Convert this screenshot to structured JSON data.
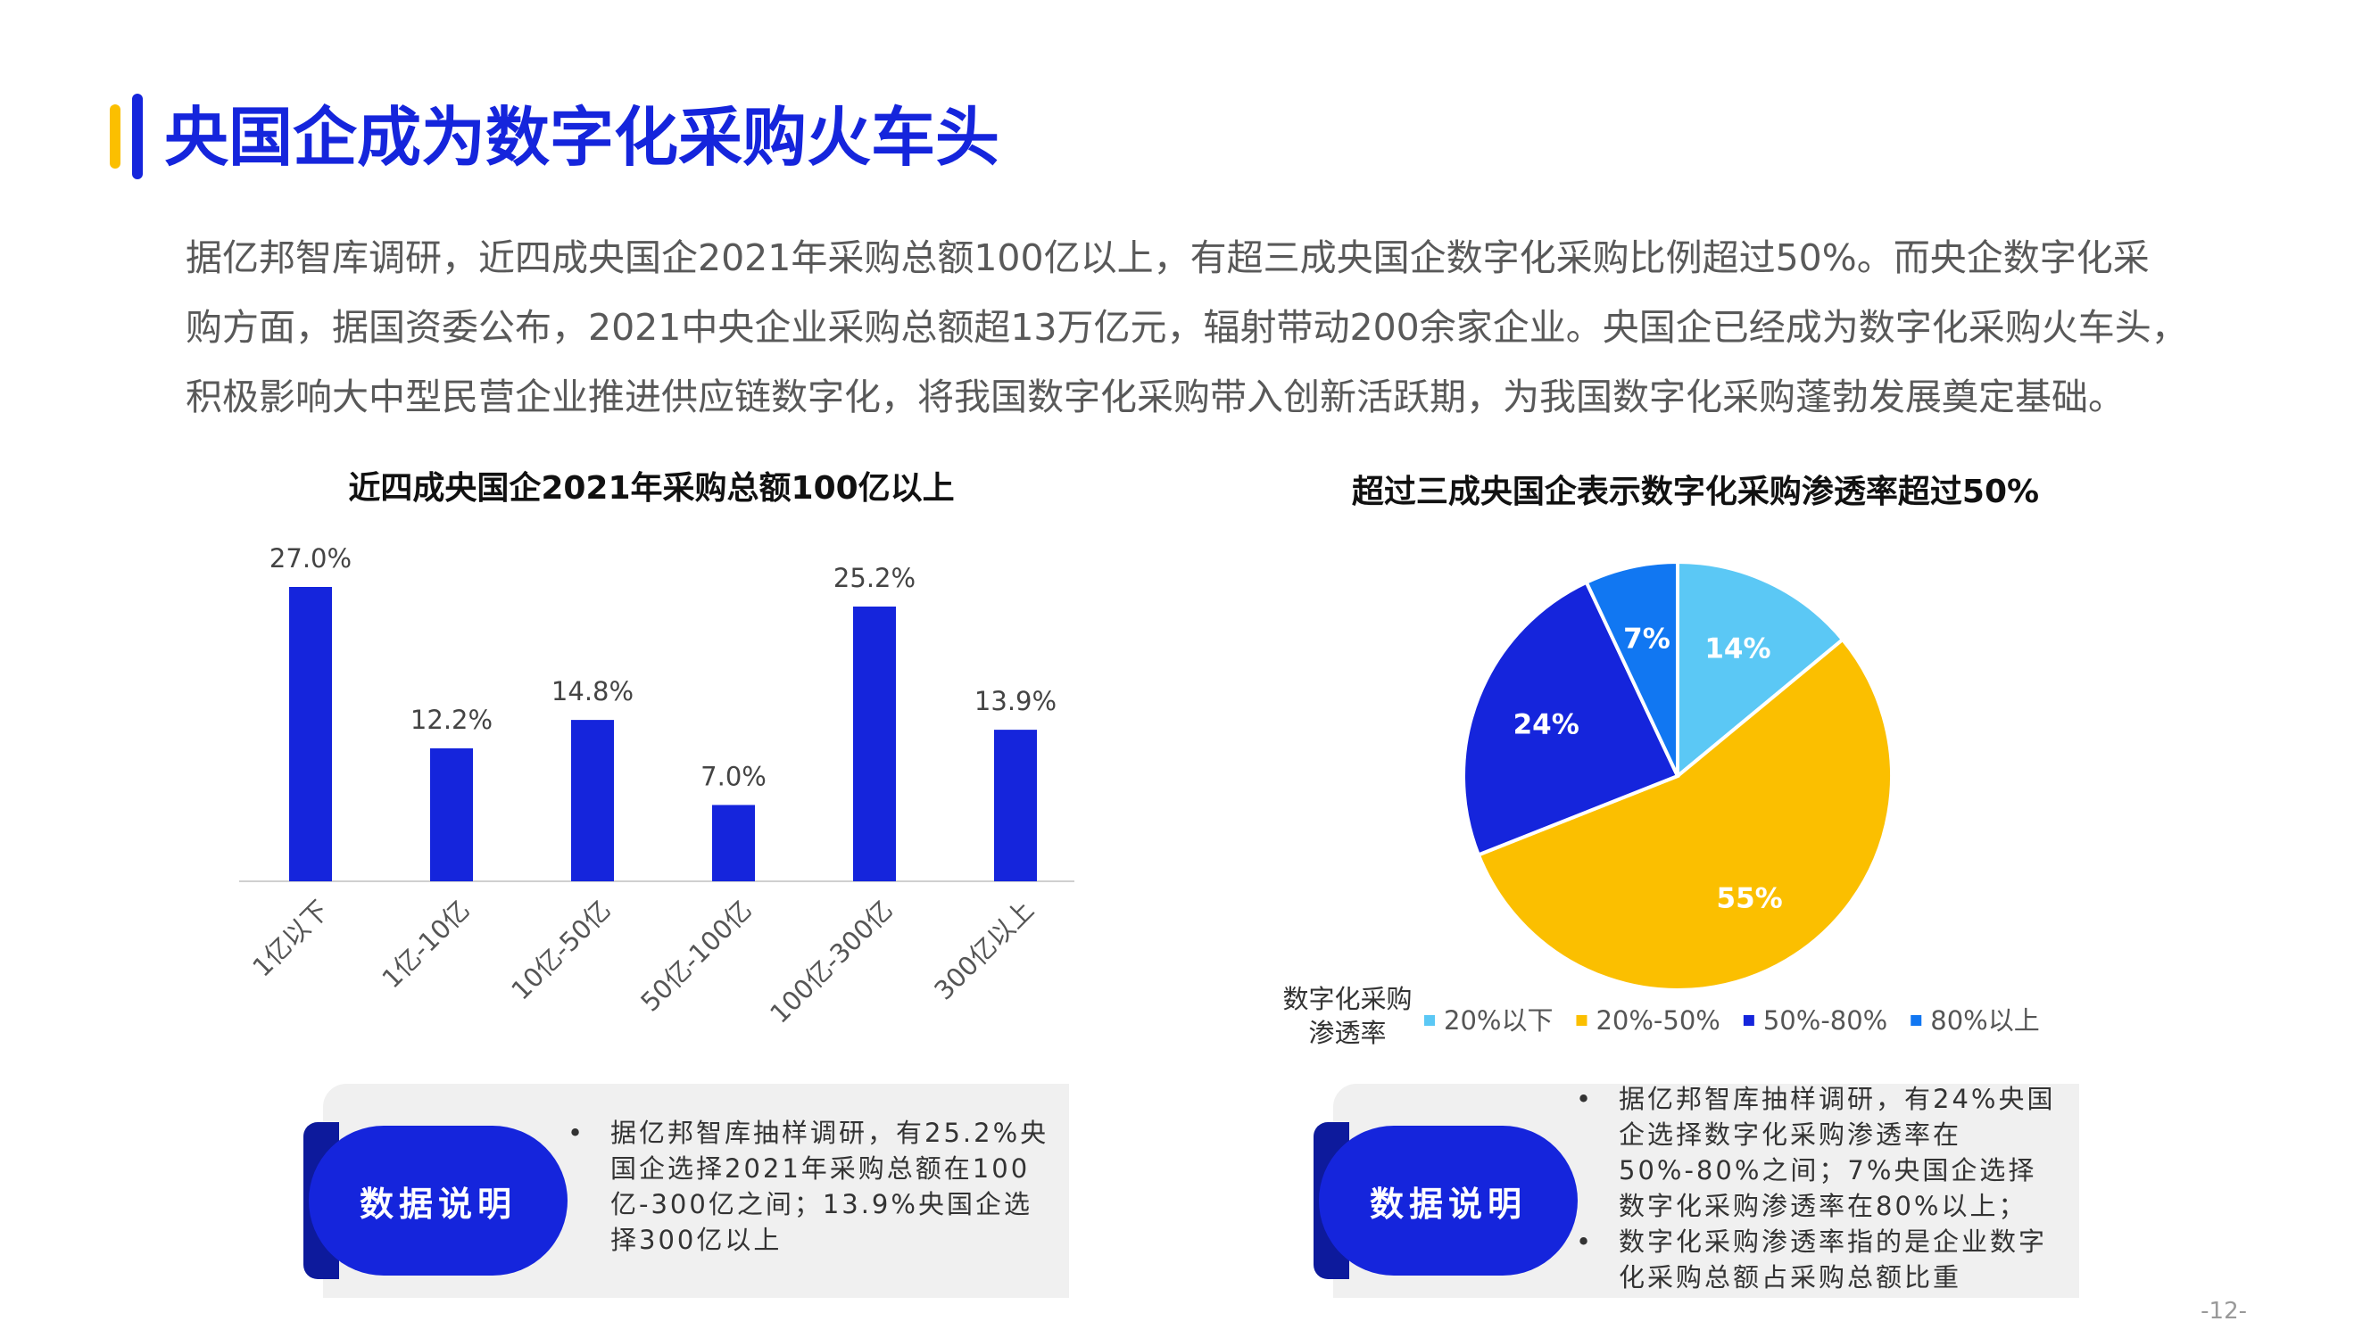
{
  "page": {
    "title": "央国企成为数字化采购火车头",
    "paragraph_lines": [
      "据亿邦智库调研，近四成央国企2021年采购总额100亿以上，有超三成央国企数字化采购比例超过50%。而央企数字化采",
      "购方面，据国资委公布，2021中央企业采购总额超13万亿元，辐射带动200余家企业。央国企已经成为数字化采购火车头，",
      "积极影响大中型民营企业推进供应链数字化，将我国数字化采购带入创新活跃期，为我国数字化采购蓬勃发展奠定基础。"
    ],
    "page_number": "-12-"
  },
  "colors": {
    "brand_blue": "#1525dc",
    "accent_yellow": "#fbbf00",
    "light_blue": "#5bc8f5",
    "mid_blue": "#1177f2",
    "note_bg": "#f0f0f0"
  },
  "chart_data": [
    {
      "type": "bar",
      "title": "近四成央国企2021年采购总额100亿以上",
      "categories": [
        "1亿以下",
        "1亿-10亿",
        "10亿-50亿",
        "50亿-100亿",
        "100亿-300亿",
        "300亿以上"
      ],
      "values": [
        27.0,
        12.2,
        14.8,
        7.0,
        25.2,
        13.9
      ],
      "data_labels": [
        "27.0%",
        "12.2%",
        "14.8%",
        "7.0%",
        "25.2%",
        "13.9%"
      ],
      "unit": "%",
      "color": "#1525dc",
      "ylim": [
        0,
        27.0
      ],
      "grid": false
    },
    {
      "type": "pie",
      "title": "超过三成央国企表示数字化采购渗透率超过50%",
      "legend_title": "数字化采购渗透率",
      "legend_position": "bottom",
      "slices": [
        {
          "label": "20%以下",
          "value": 14,
          "data_label": "14%",
          "color": "#5bc8f5"
        },
        {
          "label": "20%-50%",
          "value": 55,
          "data_label": "55%",
          "color": "#fbbf00"
        },
        {
          "label": "50%-80%",
          "value": 24,
          "data_label": "24%",
          "color": "#1525dc"
        },
        {
          "label": "80%以上",
          "value": 7,
          "data_label": "7%",
          "color": "#1177f2"
        }
      ]
    }
  ],
  "notes": [
    {
      "label": "数据说明",
      "items": [
        "据亿邦智库抽样调研，有25.2%央国企选择2021年采购总额在100亿-300亿之间；13.9%央国企选择300亿以上"
      ]
    },
    {
      "label": "数据说明",
      "items": [
        "据亿邦智库抽样调研，有24%央国企选择数字化采购渗透率在50%-80%之间；7%央国企选择数字化采购渗透率在80%以上；",
        "数字化采购渗透率指的是企业数字化采购总额占采购总额比重"
      ]
    }
  ]
}
